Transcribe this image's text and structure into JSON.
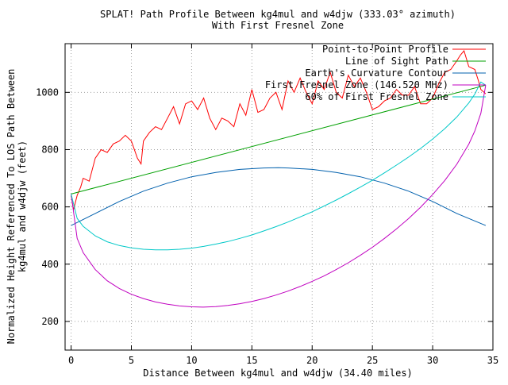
{
  "chart_data": {
    "type": "line",
    "title": "SPLAT! Path Profile Between kg4mul and w4djw (333.03° azimuth)",
    "subtitle": "With First Fresnel Zone",
    "xlabel": "Distance Between kg4mul and w4djw (34.40 miles)",
    "ylabel_line1": "Normalized Height Referenced To LOS Path Between",
    "ylabel_line2": "kg4mul and w4djw (feet)",
    "xlim": [
      -0.5,
      35
    ],
    "ylim": [
      100,
      1170
    ],
    "xticks": [
      "0",
      "5",
      "10",
      "15",
      "20",
      "25",
      "30",
      "35"
    ],
    "yticks": [
      "200",
      "400",
      "600",
      "800",
      "1000"
    ],
    "grid": true,
    "legend_position": "top-right",
    "series": [
      {
        "name": "Point-to-Point Profile",
        "color": "#ff0000",
        "x": [
          0,
          0.2,
          0.5,
          0.8,
          1,
          1.5,
          2,
          2.5,
          3,
          3.5,
          4,
          4.5,
          5,
          5.5,
          5.8,
          6,
          6.5,
          7,
          7.5,
          8,
          8.5,
          9,
          9.5,
          10,
          10.5,
          11,
          11.5,
          12,
          12.5,
          13,
          13.5,
          14,
          14.5,
          15,
          15.5,
          16,
          16.5,
          17,
          17.5,
          18,
          18.5,
          19,
          19.5,
          20,
          20.5,
          21,
          21.5,
          22,
          22.5,
          23,
          23.5,
          24,
          24.5,
          25,
          25.5,
          26,
          26.5,
          27,
          27.5,
          28,
          28.5,
          29,
          29.5,
          30,
          30.5,
          31,
          31.5,
          32,
          32.3,
          32.6,
          33,
          33.5,
          33.8,
          34,
          34.4
        ],
        "y": [
          640,
          590,
          640,
          670,
          700,
          690,
          770,
          800,
          790,
          820,
          830,
          850,
          830,
          770,
          750,
          830,
          860,
          880,
          870,
          910,
          950,
          890,
          960,
          970,
          940,
          980,
          910,
          870,
          910,
          900,
          880,
          960,
          920,
          1010,
          930,
          940,
          980,
          1000,
          940,
          1040,
          1000,
          1050,
          1000,
          960,
          1040,
          1010,
          1070,
          1000,
          980,
          1060,
          1020,
          1050,
          1000,
          940,
          950,
          970,
          980,
          1010,
          990,
          990,
          1020,
          960,
          960,
          980,
          1030,
          1070,
          1080,
          1110,
          1130,
          1145,
          1090,
          1080,
          1040,
          1010,
          995
        ]
      },
      {
        "name": "Line of Sight Path",
        "color": "#00a000",
        "x": [
          0,
          34.4
        ],
        "y": [
          645,
          1025
        ]
      },
      {
        "name": "Earth's Curvature Contour",
        "color": "#0060ad",
        "x": [
          0,
          2,
          4,
          6,
          8,
          10,
          12,
          14,
          16,
          17.2,
          18,
          20,
          22,
          24,
          26,
          28,
          30,
          32,
          34.4
        ],
        "y": [
          535,
          577,
          619,
          655,
          683,
          705,
          720,
          731,
          736,
          737,
          736,
          731,
          720,
          705,
          683,
          655,
          619,
          577,
          535
        ]
      },
      {
        "name": "First Fresnel Zone (146.520 MHz)",
        "color": "#c000c0",
        "x": [
          0,
          0.5,
          1,
          2,
          3,
          4,
          5,
          6,
          7,
          8,
          9,
          10,
          11,
          12,
          13,
          14,
          15,
          16,
          17,
          18,
          19,
          20,
          21,
          22,
          23,
          24,
          25,
          26,
          27,
          28,
          29,
          30,
          31,
          32,
          33,
          33.5,
          34,
          34.4
        ],
        "y": [
          645,
          490,
          440,
          381,
          342,
          315,
          295,
          280,
          268,
          260,
          254,
          251,
          250,
          252,
          256,
          262,
          270,
          280,
          292,
          306,
          322,
          340,
          359,
          381,
          405,
          431,
          459,
          490,
          523,
          559,
          599,
          643,
          692,
          749,
          819,
          865,
          927,
          1025
        ]
      },
      {
        "name": "60% of First Fresnel Zone",
        "color": "#00c8c8",
        "x": [
          0,
          0.5,
          1,
          2,
          3,
          4,
          5,
          6,
          7,
          8,
          9,
          10,
          11,
          12,
          13,
          14,
          15,
          16,
          17,
          18,
          19,
          20,
          21,
          22,
          23,
          24,
          25,
          26,
          27,
          28,
          29,
          30,
          31,
          32,
          33,
          33.5,
          34,
          34.4
        ],
        "y": [
          645,
          560,
          532,
          499,
          478,
          465,
          457,
          452,
          450,
          450,
          452,
          456,
          462,
          470,
          479,
          490,
          502,
          516,
          531,
          547,
          565,
          583,
          603,
          624,
          646,
          669,
          693,
          719,
          746,
          774,
          804,
          837,
          873,
          914,
          963,
          994,
          1036,
          1025
        ]
      }
    ]
  }
}
